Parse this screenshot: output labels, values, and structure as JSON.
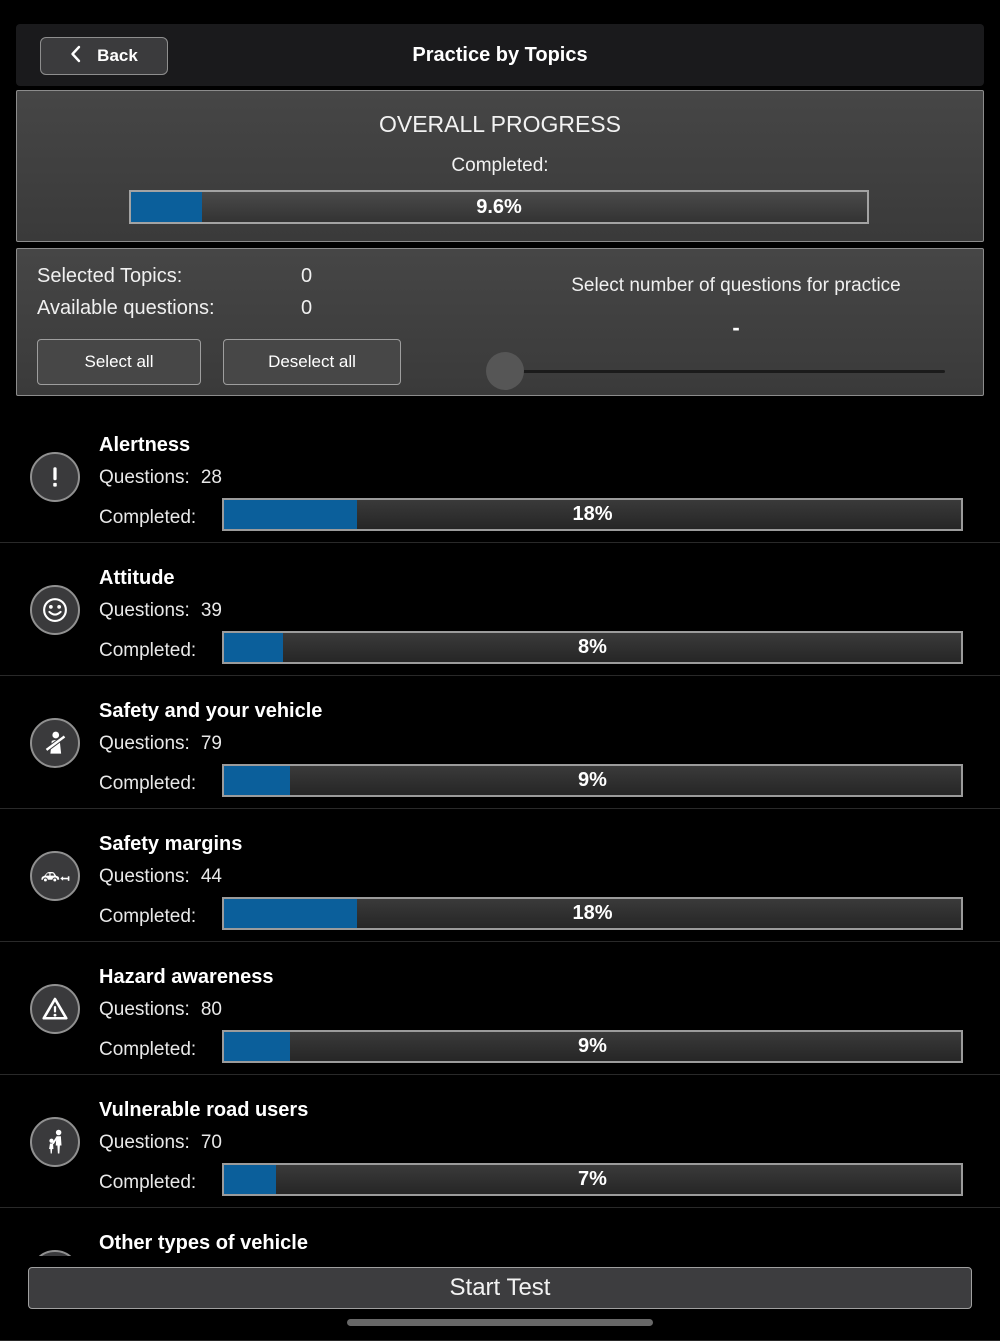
{
  "header": {
    "back": "Back",
    "title": "Practice by Topics"
  },
  "overall": {
    "title": "OVERALL PROGRESS",
    "completed_label": "Completed:",
    "percent": 9.6,
    "percent_label": "9.6%"
  },
  "selection": {
    "selected_topics_label": "Selected Topics:",
    "selected_topics_value": "0",
    "available_questions_label": "Available questions:",
    "available_questions_value": "0",
    "select_all": "Select all",
    "deselect_all": "Deselect all",
    "slider_title": "Select number of questions for practice",
    "slider_value": "-"
  },
  "topic_labels": {
    "questions": "Questions:",
    "completed": "Completed:"
  },
  "topics": [
    {
      "name": "Alertness",
      "icon": "exclamation-icon",
      "questions": "28",
      "percent": 18,
      "percent_label": "18%"
    },
    {
      "name": "Attitude",
      "icon": "smiley-face-icon",
      "questions": "39",
      "percent": 8,
      "percent_label": "8%"
    },
    {
      "name": "Safety and your vehicle",
      "icon": "seatbelt-icon",
      "questions": "79",
      "percent": 9,
      "percent_label": "9%"
    },
    {
      "name": "Safety margins",
      "icon": "car-distance-icon",
      "questions": "44",
      "percent": 18,
      "percent_label": "18%"
    },
    {
      "name": "Hazard awareness",
      "icon": "warning-triangle-icon",
      "questions": "80",
      "percent": 9,
      "percent_label": "9%"
    },
    {
      "name": "Vulnerable road users",
      "icon": "pedestrians-icon",
      "questions": "70",
      "percent": 7,
      "percent_label": "7%"
    },
    {
      "name": "Other types of vehicle",
      "icon": "motorcycle-icon",
      "questions": "",
      "percent": null,
      "percent_label": ""
    }
  ],
  "footer": {
    "start_test": "Start Test"
  },
  "colors": {
    "accent_blue": "#0b5f9b"
  }
}
